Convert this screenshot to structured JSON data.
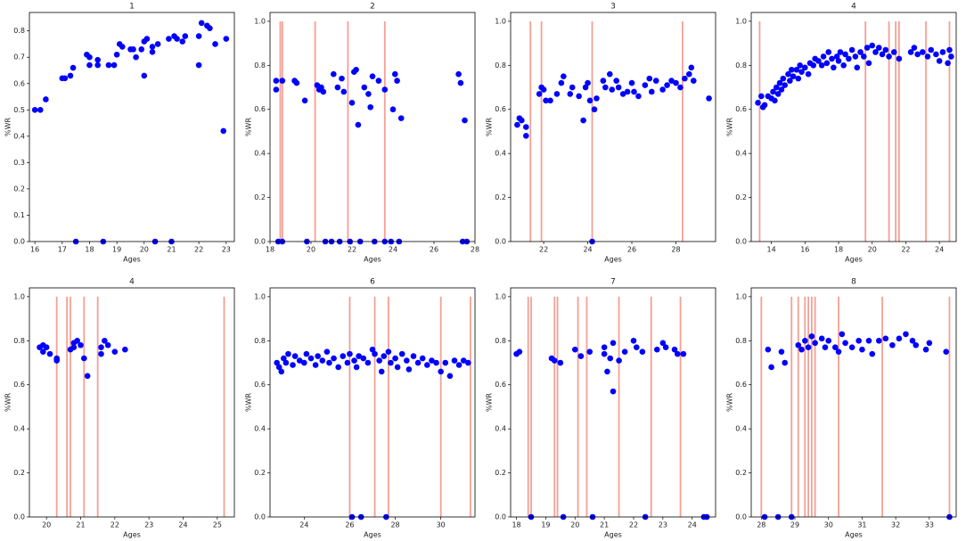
{
  "chart_data": [
    {
      "type": "scatter",
      "title": "1",
      "xlabel": "Ages",
      "ylabel": "%WR",
      "color": "#0000ff",
      "vline_color": "#f08070",
      "xlim": [
        15.8,
        23.3
      ],
      "xticks": [
        16,
        17,
        18,
        19,
        20,
        21,
        22,
        23
      ],
      "ylim": [
        0,
        0.87
      ],
      "yticks": [
        {
          "value": 0,
          "label": "0.0"
        },
        0.1,
        0.2,
        0.3,
        0.4,
        0.5,
        0.6,
        0.7,
        0.8
      ],
      "x": [
        16.0,
        16.2,
        16.4,
        17.0,
        17.1,
        17.3,
        17.4,
        17.5,
        17.9,
        18.0,
        18.0,
        18.3,
        18.3,
        18.5,
        18.7,
        18.9,
        19.0,
        19.1,
        19.2,
        19.5,
        19.6,
        19.7,
        19.9,
        20.0,
        20.0,
        20.1,
        20.3,
        20.3,
        20.4,
        20.5,
        20.9,
        21.0,
        21.1,
        21.2,
        21.4,
        21.5,
        22.0,
        22.0,
        22.1,
        22.3,
        22.4,
        22.6,
        22.9,
        23.0
      ],
      "values": [
        0.5,
        0.5,
        0.54,
        0.62,
        0.62,
        0.63,
        0.66,
        0,
        0.71,
        0.7,
        0.67,
        0.69,
        0.67,
        0,
        0.67,
        0.67,
        0.71,
        0.75,
        0.74,
        0.73,
        0.73,
        0.7,
        0.73,
        0.63,
        0.76,
        0.77,
        0.74,
        0.72,
        0,
        0.75,
        0.77,
        0,
        0.78,
        0.77,
        0.76,
        0.78,
        0.78,
        0.67,
        0.83,
        0.82,
        0.81,
        0.75,
        0.42,
        0.77
      ],
      "vlines": []
    },
    {
      "type": "scatter",
      "title": "2",
      "xlabel": "Ages",
      "ylabel": "%WR",
      "color": "#0000ff",
      "vline_color": "#f08070",
      "xlim": [
        18,
        28
      ],
      "xticks": [
        18,
        20,
        22,
        24,
        26,
        28
      ],
      "ylim": [
        0,
        1.04
      ],
      "yticks": [
        {
          "value": 0,
          "label": "0.0"
        },
        0.2,
        0.4,
        0.6,
        0.8,
        {
          "value": 1,
          "label": "1.0"
        }
      ],
      "x": [
        18.3,
        18.3,
        18.4,
        18.6,
        18.6,
        19.2,
        19.3,
        19.7,
        19.8,
        20.3,
        20.4,
        20.5,
        20.6,
        20.7,
        21.0,
        21.1,
        21.3,
        21.4,
        21.5,
        21.6,
        21.9,
        22.0,
        22.1,
        22.2,
        22.3,
        22.4,
        22.6,
        22.8,
        22.9,
        23.0,
        23.1,
        23.3,
        23.6,
        23.6,
        23.9,
        24.0,
        24.1,
        24.2,
        24.3,
        24.4,
        27.2,
        27.3,
        27.4,
        27.5,
        27.6
      ],
      "values": [
        0.73,
        0.69,
        0,
        0.73,
        0,
        0.73,
        0.72,
        0.64,
        0,
        0.71,
        0.69,
        0.7,
        0.68,
        0,
        0,
        0.76,
        0.7,
        0,
        0.74,
        0.68,
        0,
        0.63,
        0.77,
        0.78,
        0.53,
        0,
        0.7,
        0.67,
        0.61,
        0.75,
        0,
        0.73,
        0.69,
        0,
        0,
        0.6,
        0.76,
        0.73,
        0,
        0.56,
        0.76,
        0.72,
        0,
        0.55,
        0
      ],
      "vlines": [
        18.5,
        18.6,
        20.2,
        21.8,
        23.6
      ]
    },
    {
      "type": "scatter",
      "title": "3",
      "xlabel": "Ages",
      "ylabel": "%WR",
      "color": "#0000ff",
      "vline_color": "#f08070",
      "xlim": [
        20.5,
        29.8
      ],
      "xticks": [
        22,
        24,
        26,
        28
      ],
      "ylim": [
        0,
        1.04
      ],
      "yticks": [
        {
          "value": 0,
          "label": "0.0"
        },
        0.2,
        0.4,
        0.6,
        0.8,
        {
          "value": 1,
          "label": "1.0"
        }
      ],
      "x": [
        20.8,
        20.9,
        21.0,
        21.2,
        21.2,
        21.8,
        21.9,
        22.0,
        22.1,
        22.3,
        22.6,
        22.8,
        22.9,
        23.2,
        23.3,
        23.6,
        23.8,
        23.9,
        24.0,
        24.1,
        24.2,
        24.3,
        24.4,
        24.7,
        24.8,
        25.0,
        25.1,
        25.3,
        25.4,
        25.6,
        25.8,
        26.0,
        26.1,
        26.3,
        26.6,
        26.8,
        26.9,
        27.1,
        27.4,
        27.6,
        27.8,
        28.0,
        28.2,
        28.4,
        28.6,
        28.7,
        28.8,
        29.5
      ],
      "values": [
        0.53,
        0.56,
        0.55,
        0.48,
        0.52,
        0.67,
        0.7,
        0.69,
        0.64,
        0.64,
        0.67,
        0.72,
        0.75,
        0.67,
        0.7,
        0.66,
        0.55,
        0.7,
        0.72,
        0.64,
        0,
        0.6,
        0.65,
        0.73,
        0.7,
        0.76,
        0.69,
        0.73,
        0.7,
        0.67,
        0.68,
        0.72,
        0.68,
        0.66,
        0.71,
        0.74,
        0.68,
        0.73,
        0.69,
        0.71,
        0.73,
        0.72,
        0.7,
        0.74,
        0.76,
        0.79,
        0.73,
        0.65
      ],
      "vlines": [
        21.4,
        21.9,
        24.2,
        28.3
      ]
    },
    {
      "type": "scatter",
      "title": "4",
      "xlabel": "Ages",
      "ylabel": "%WR",
      "color": "#0000ff",
      "vline_color": "#f08070",
      "xlim": [
        12.8,
        25
      ],
      "xticks": [
        14,
        16,
        18,
        20,
        22,
        24
      ],
      "ylim": [
        0,
        1.04
      ],
      "yticks": [
        {
          "value": 0,
          "label": "0.0"
        },
        0.2,
        0.4,
        0.6,
        0.8,
        {
          "value": 1,
          "label": "1.0"
        }
      ],
      "x": [
        13.2,
        13.4,
        13.5,
        13.6,
        13.8,
        14.0,
        14.1,
        14.2,
        14.3,
        14.4,
        14.5,
        14.6,
        14.7,
        14.8,
        15.0,
        15.1,
        15.2,
        15.3,
        15.5,
        15.6,
        15.7,
        15.8,
        16.0,
        16.2,
        16.3,
        16.5,
        16.6,
        16.8,
        17.0,
        17.1,
        17.3,
        17.4,
        17.6,
        17.7,
        17.9,
        18.0,
        18.1,
        18.3,
        18.4,
        18.6,
        18.8,
        19.0,
        19.1,
        19.3,
        19.5,
        19.7,
        19.8,
        20.0,
        20.2,
        20.4,
        20.6,
        20.8,
        21.0,
        21.3,
        21.6,
        22.3,
        22.5,
        22.7,
        23.0,
        23.3,
        23.5,
        23.8,
        24.0,
        24.2,
        24.5,
        24.6,
        24.7
      ],
      "values": [
        0.63,
        0.66,
        0.61,
        0.62,
        0.66,
        0.65,
        0.68,
        0.64,
        0.7,
        0.67,
        0.72,
        0.69,
        0.74,
        0.71,
        0.76,
        0.73,
        0.78,
        0.75,
        0.78,
        0.74,
        0.8,
        0.77,
        0.79,
        0.76,
        0.81,
        0.8,
        0.83,
        0.82,
        0.8,
        0.84,
        0.81,
        0.86,
        0.83,
        0.79,
        0.84,
        0.82,
        0.86,
        0.8,
        0.85,
        0.83,
        0.87,
        0.84,
        0.79,
        0.86,
        0.84,
        0.88,
        0.81,
        0.89,
        0.86,
        0.88,
        0.85,
        0.87,
        0.84,
        0.86,
        0.83,
        0.86,
        0.88,
        0.85,
        0.86,
        0.84,
        0.87,
        0.85,
        0.82,
        0.86,
        0.81,
        0.87,
        0.84
      ],
      "vlines": [
        13.3,
        19.6,
        21.0,
        21.4,
        21.6,
        23.2,
        24.6
      ]
    },
    {
      "type": "scatter",
      "title": "4",
      "xlabel": "Ages",
      "ylabel": "%WR",
      "color": "#0000ff",
      "vline_color": "#f08070",
      "xlim": [
        19.5,
        25.5
      ],
      "xticks": [
        20,
        21,
        22,
        23,
        24,
        25
      ],
      "ylim": [
        0,
        1.04
      ],
      "yticks": [
        {
          "value": 0,
          "label": "0.0"
        },
        0.2,
        0.4,
        0.6,
        0.8,
        {
          "value": 1,
          "label": "1.0"
        }
      ],
      "x": [
        19.8,
        19.9,
        19.9,
        20.0,
        20.1,
        20.3,
        20.3,
        20.7,
        20.8,
        20.8,
        20.9,
        21.0,
        21.1,
        21.2,
        21.6,
        21.6,
        21.7,
        21.8,
        22.0,
        22.3
      ],
      "values": [
        0.77,
        0.78,
        0.75,
        0.77,
        0.74,
        0.72,
        0.71,
        0.76,
        0.79,
        0.77,
        0.8,
        0.78,
        0.72,
        0.64,
        0.77,
        0.74,
        0.8,
        0.78,
        0.75,
        0.76
      ],
      "vlines": [
        20.3,
        20.6,
        20.7,
        21.1,
        21.5,
        25.2
      ]
    },
    {
      "type": "scatter",
      "title": "6",
      "xlabel": "Ages",
      "ylabel": "%WR",
      "color": "#0000ff",
      "vline_color": "#f08070",
      "xlim": [
        22.5,
        31.5
      ],
      "xticks": [
        24,
        26,
        28,
        30
      ],
      "ylim": [
        0,
        1.04
      ],
      "yticks": [
        {
          "value": 0,
          "label": "0.0"
        },
        0.2,
        0.4,
        0.6,
        0.8,
        {
          "value": 1,
          "label": "1.0"
        }
      ],
      "x": [
        22.8,
        22.9,
        23.0,
        23.1,
        23.2,
        23.3,
        23.5,
        23.6,
        23.8,
        24.0,
        24.1,
        24.3,
        24.5,
        24.6,
        24.8,
        25.0,
        25.1,
        25.3,
        25.5,
        25.7,
        25.9,
        26.0,
        26.1,
        26.2,
        26.3,
        26.4,
        26.5,
        26.6,
        26.8,
        27.0,
        27.1,
        27.3,
        27.4,
        27.5,
        27.6,
        27.7,
        27.8,
        28.0,
        28.1,
        28.3,
        28.5,
        28.6,
        28.8,
        29.0,
        29.2,
        29.4,
        29.6,
        29.8,
        30.0,
        30.2,
        30.4,
        30.6,
        30.8,
        31.0,
        31.2
      ],
      "values": [
        0.7,
        0.68,
        0.66,
        0.72,
        0.7,
        0.74,
        0.69,
        0.73,
        0.71,
        0.7,
        0.74,
        0.72,
        0.69,
        0.73,
        0.71,
        0.75,
        0.7,
        0.72,
        0.68,
        0.73,
        0.7,
        0.74,
        0,
        0.71,
        0.68,
        0.73,
        0,
        0.72,
        0.7,
        0.76,
        0.74,
        0.71,
        0.66,
        0.73,
        0,
        0.75,
        0.7,
        0.72,
        0.68,
        0.74,
        0.71,
        0.67,
        0.73,
        0.7,
        0.72,
        0.69,
        0.71,
        0.7,
        0.66,
        0.7,
        0.64,
        0.71,
        0.69,
        0.71,
        0.7
      ],
      "vlines": [
        26.0,
        27.1,
        27.7,
        30.0,
        31.3
      ]
    },
    {
      "type": "scatter",
      "title": "7",
      "xlabel": "Ages",
      "ylabel": "%WR",
      "color": "#0000ff",
      "vline_color": "#f08070",
      "xlim": [
        17.8,
        24.8
      ],
      "xticks": [
        18,
        19,
        20,
        21,
        22,
        23,
        24
      ],
      "ylim": [
        0,
        1.04
      ],
      "yticks": [
        {
          "value": 0,
          "label": "0.0"
        },
        0.2,
        0.4,
        0.6,
        0.8,
        {
          "value": 1,
          "label": "1.0"
        }
      ],
      "x": [
        18.0,
        18.1,
        18.5,
        19.2,
        19.3,
        19.5,
        19.6,
        20.0,
        20.2,
        20.5,
        20.6,
        21.0,
        21.0,
        21.1,
        21.2,
        21.3,
        21.3,
        21.5,
        21.7,
        22.0,
        22.1,
        22.3,
        22.4,
        22.8,
        23.0,
        23.1,
        23.4,
        23.5,
        23.7,
        24.4,
        24.5
      ],
      "values": [
        0.74,
        0.75,
        0,
        0.72,
        0.71,
        0.7,
        0,
        0.76,
        0.73,
        0.75,
        0,
        0.77,
        0.74,
        0.66,
        0.72,
        0.57,
        0.79,
        0.71,
        0.75,
        0.8,
        0.77,
        0.75,
        0,
        0.76,
        0.79,
        0.77,
        0.76,
        0.74,
        0.74,
        0,
        0
      ],
      "vlines": [
        18.4,
        18.5,
        19.3,
        19.4,
        20.1,
        20.4,
        21.5,
        22.6,
        23.6
      ]
    },
    {
      "type": "scatter",
      "title": "8",
      "xlabel": "Ages",
      "ylabel": "%WR",
      "color": "#0000ff",
      "vline_color": "#f08070",
      "xlim": [
        27.7,
        33.8
      ],
      "xticks": [
        28,
        29,
        30,
        31,
        32,
        33
      ],
      "ylim": [
        0,
        1.04
      ],
      "yticks": [
        {
          "value": 0,
          "label": "0.0"
        },
        0.2,
        0.4,
        0.6,
        0.8,
        {
          "value": 1,
          "label": "1.0"
        }
      ],
      "x": [
        28.1,
        28.2,
        28.3,
        28.5,
        28.6,
        28.7,
        28.9,
        29.1,
        29.2,
        29.3,
        29.4,
        29.5,
        29.6,
        29.8,
        29.9,
        30.0,
        30.2,
        30.3,
        30.4,
        30.5,
        30.7,
        30.9,
        31.0,
        31.2,
        31.3,
        31.5,
        31.7,
        31.9,
        32.1,
        32.3,
        32.5,
        32.6,
        32.9,
        33.0,
        33.5,
        33.6
      ],
      "values": [
        0,
        0.76,
        0.68,
        0,
        0.75,
        0.7,
        0,
        0.78,
        0.76,
        0.8,
        0.77,
        0.82,
        0.79,
        0.81,
        0.77,
        0.8,
        0.77,
        0.75,
        0.83,
        0.79,
        0.77,
        0.8,
        0.76,
        0.8,
        0.74,
        0.8,
        0.81,
        0.78,
        0.81,
        0.83,
        0.8,
        0.78,
        0.76,
        0.79,
        0.75,
        0
      ],
      "vlines": [
        28.0,
        28.9,
        29.1,
        29.3,
        29.4,
        29.5,
        29.6,
        30.3,
        31.6,
        33.6
      ]
    }
  ]
}
